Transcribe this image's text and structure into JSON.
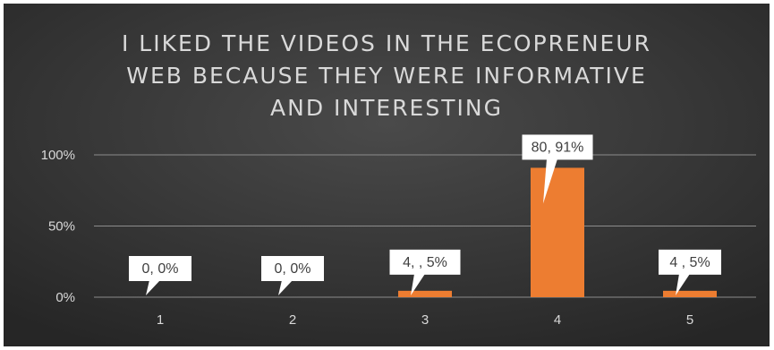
{
  "chart_data": {
    "type": "bar",
    "title_lines": [
      "I LIKED THE VIDEOS IN THE ECOPRENEUR",
      "WEB BECAUSE THEY WERE INFORMATIVE",
      "AND INTERESTING"
    ],
    "categories": [
      "1",
      "2",
      "3",
      "4",
      "5"
    ],
    "values": [
      0,
      0,
      4.5,
      90.91,
      4.5
    ],
    "data_labels": [
      "0, 0%",
      "0, 0%",
      "4, , 5%",
      "80, 91%",
      "4 , 5%"
    ],
    "y_ticks": [
      "0%",
      "50%",
      "100%"
    ],
    "ylim": [
      0,
      100
    ],
    "grid": true,
    "legend": "none"
  },
  "colors": {
    "background_top": "#4a4a4a",
    "background_bottom": "#262626",
    "bar": "#ed7d31",
    "gridline": "#8c8c8c",
    "text": "#d9d9d9",
    "callout_fill": "#ffffff",
    "callout_text": "#404040"
  }
}
